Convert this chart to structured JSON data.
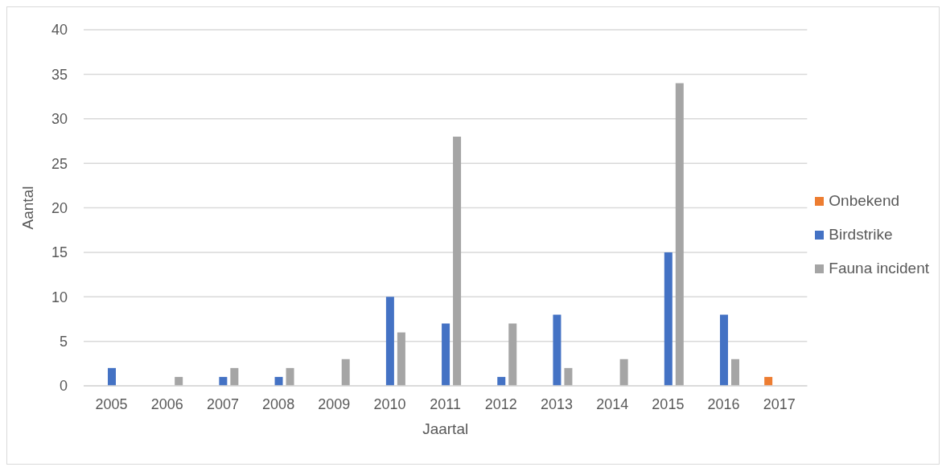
{
  "chart_data": {
    "type": "bar",
    "xlabel": "Jaartal",
    "ylabel": "Aantal",
    "categories": [
      "2005",
      "2006",
      "2007",
      "2008",
      "2009",
      "2010",
      "2011",
      "2012",
      "2013",
      "2014",
      "2015",
      "2016",
      "2017"
    ],
    "series": [
      {
        "name": "Onbekend",
        "color": "#ed7d31",
        "values": [
          0,
          0,
          0,
          0,
          0,
          0,
          0,
          0,
          0,
          0,
          0,
          0,
          1
        ]
      },
      {
        "name": "Birdstrike",
        "color": "#4472c4",
        "values": [
          2,
          0,
          1,
          1,
          0,
          10,
          7,
          1,
          8,
          0,
          15,
          8,
          0
        ]
      },
      {
        "name": "Fauna incident",
        "color": "#a5a5a5",
        "values": [
          0,
          1,
          2,
          2,
          3,
          6,
          28,
          7,
          2,
          3,
          34,
          3,
          0
        ]
      }
    ],
    "ylim": [
      0,
      40
    ],
    "yticks": [
      0,
      5,
      10,
      15,
      20,
      25,
      30,
      35,
      40
    ],
    "grid": "y",
    "legend": "right"
  }
}
